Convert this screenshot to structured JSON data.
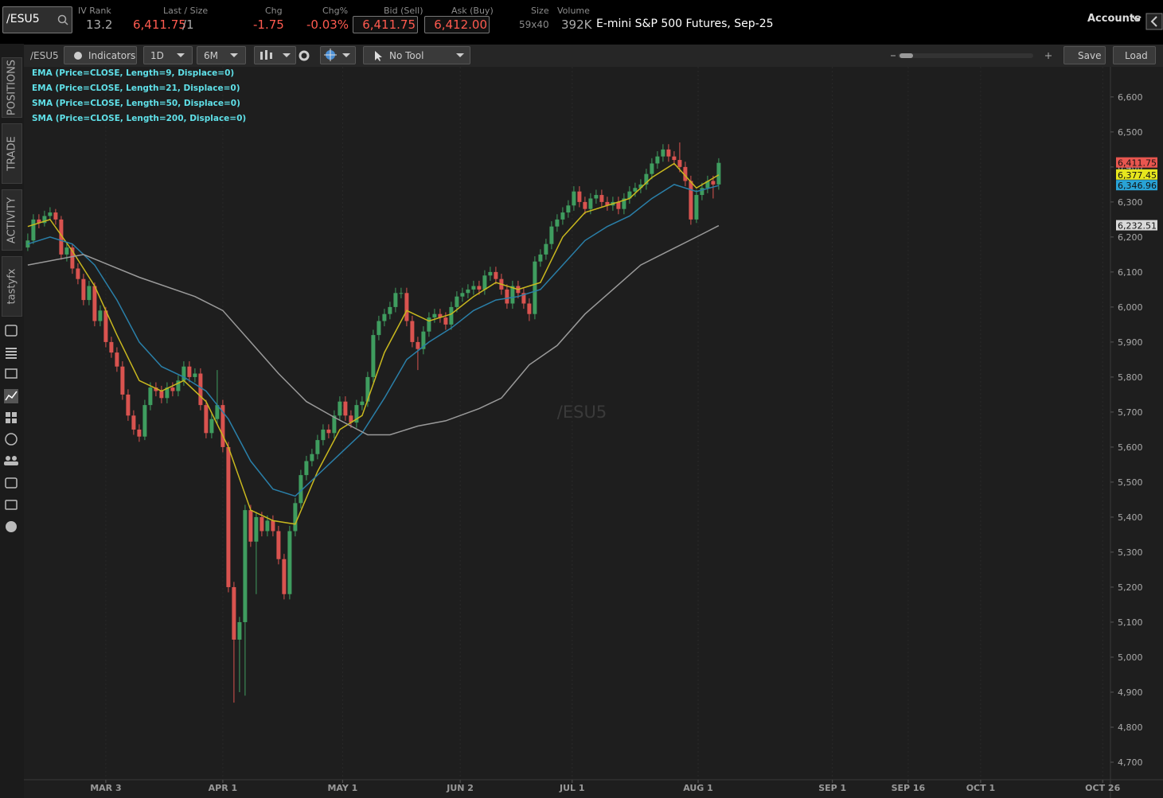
{
  "header": {
    "symbol": "/ESU5",
    "fields": [
      {
        "label": "IV Rank",
        "value": "13.2"
      },
      {
        "label": "Last / Size",
        "value": "6,411.75",
        "size": "/1"
      },
      {
        "label": "Chg",
        "value": "-1.75"
      },
      {
        "label": "Chg%",
        "value": "-0.03%"
      },
      {
        "label": "Bid (Sell)",
        "value": "6,411.75"
      },
      {
        "label": "Ask (Buy)",
        "value": "6,412.00"
      },
      {
        "label": "Size",
        "value": "59x40"
      },
      {
        "label": "Volume",
        "value": "392K"
      }
    ],
    "description": "E-mini S&P 500 Futures, Sep-25",
    "accounts": "Accounts"
  },
  "toolbar": {
    "symbol": "/ESU5",
    "indicators": "Indicators",
    "aggregation": "1D",
    "range": "6M",
    "tool": "No Tool",
    "save": "Save",
    "load": "Load"
  },
  "sidebar": {
    "tabs": [
      "POSITIONS",
      "TRADE",
      "ACTIVITY",
      "tastyfx"
    ]
  },
  "chart_data": {
    "type": "candlestick",
    "watermark": "/ESU5",
    "up_color": "#3f9d5f",
    "down_color": "#d9534f",
    "xlim": [
      -0.7,
      194.3
    ],
    "ylim": [
      4650,
      6686
    ],
    "xticks": [
      {
        "value": 14,
        "label": "MAR 3"
      },
      {
        "value": 35,
        "label": "APR 1"
      },
      {
        "value": 56.5,
        "label": "MAY 1"
      },
      {
        "value": 77.6,
        "label": "JUN 2"
      },
      {
        "value": 97.7,
        "label": "JUL 1"
      },
      {
        "value": 120.3,
        "label": "AUG 1"
      },
      {
        "value": 144.4,
        "label": "SEP 1"
      },
      {
        "value": 158,
        "label": "SEP 16"
      },
      {
        "value": 171,
        "label": "OCT 1"
      },
      {
        "value": 192.9,
        "label": "OCT 26"
      }
    ],
    "yticks": [
      {
        "value": 4700,
        "label": "4,700"
      },
      {
        "value": 4800,
        "label": "4,800"
      },
      {
        "value": 4900,
        "label": "4,900"
      },
      {
        "value": 5000,
        "label": "5,000"
      },
      {
        "value": 5100,
        "label": "5,100"
      },
      {
        "value": 5200,
        "label": "5,200"
      },
      {
        "value": 5300,
        "label": "5,300"
      },
      {
        "value": 5400,
        "label": "5,400"
      },
      {
        "value": 5500,
        "label": "5,500"
      },
      {
        "value": 5600,
        "label": "5,600"
      },
      {
        "value": 5700,
        "label": "5,700"
      },
      {
        "value": 5800,
        "label": "5,800"
      },
      {
        "value": 5900,
        "label": "5,900"
      },
      {
        "value": 6000,
        "label": "6,000"
      },
      {
        "value": 6100,
        "label": "6,100"
      },
      {
        "value": 6200,
        "label": "6,200"
      },
      {
        "value": 6300,
        "label": "6,300"
      },
      {
        "value": 6400,
        "label": "6,400"
      },
      {
        "value": 6500,
        "label": "6,500"
      },
      {
        "value": 6600,
        "label": "6,600"
      }
    ],
    "candles": [
      [
        6170,
        6210,
        6160,
        6190
      ],
      [
        6190,
        6265,
        6180,
        6250
      ],
      [
        6250,
        6265,
        6225,
        6240
      ],
      [
        6240,
        6275,
        6230,
        6260
      ],
      [
        6260,
        6285,
        6250,
        6270
      ],
      [
        6270,
        6280,
        6235,
        6250
      ],
      [
        6250,
        6260,
        6135,
        6150
      ],
      [
        6150,
        6185,
        6130,
        6170
      ],
      [
        6170,
        6180,
        6095,
        6110
      ],
      [
        6110,
        6125,
        6065,
        6080
      ],
      [
        6080,
        6095,
        6005,
        6020
      ],
      [
        6020,
        6075,
        6005,
        6060
      ],
      [
        6060,
        6070,
        5945,
        5960
      ],
      [
        5960,
        6005,
        5945,
        5990
      ],
      [
        5990,
        6000,
        5885,
        5900
      ],
      [
        5900,
        5915,
        5855,
        5870
      ],
      [
        5870,
        5885,
        5815,
        5830
      ],
      [
        5830,
        5845,
        5735,
        5750
      ],
      [
        5750,
        5765,
        5675,
        5690
      ],
      [
        5690,
        5705,
        5635,
        5650
      ],
      [
        5650,
        5665,
        5615,
        5630
      ],
      [
        5630,
        5735,
        5620,
        5720
      ],
      [
        5720,
        5785,
        5705,
        5770
      ],
      [
        5770,
        5785,
        5745,
        5760
      ],
      [
        5760,
        5775,
        5725,
        5740
      ],
      [
        5740,
        5785,
        5725,
        5770
      ],
      [
        5770,
        5785,
        5745,
        5760
      ],
      [
        5760,
        5805,
        5745,
        5790
      ],
      [
        5790,
        5845,
        5775,
        5830
      ],
      [
        5830,
        5845,
        5785,
        5800
      ],
      [
        5800,
        5825,
        5785,
        5810
      ],
      [
        5810,
        5825,
        5705,
        5720
      ],
      [
        5720,
        5735,
        5625,
        5640
      ],
      [
        5640,
        5695,
        5625,
        5680
      ],
      [
        5680,
        5820,
        5665,
        5720
      ],
      [
        5720,
        5735,
        5585,
        5600
      ],
      [
        5600,
        5615,
        5185,
        5200
      ],
      [
        5200,
        5215,
        4870,
        5050
      ],
      [
        5050,
        5115,
        4900,
        5100
      ],
      [
        5100,
        5435,
        4890,
        5420
      ],
      [
        5420,
        5435,
        5315,
        5330
      ],
      [
        5330,
        5415,
        5180,
        5400
      ],
      [
        5400,
        5415,
        5345,
        5360
      ],
      [
        5360,
        5405,
        5345,
        5390
      ],
      [
        5390,
        5405,
        5345,
        5360
      ],
      [
        5360,
        5375,
        5265,
        5280
      ],
      [
        5280,
        5295,
        5165,
        5180
      ],
      [
        5180,
        5375,
        5165,
        5360
      ],
      [
        5360,
        5455,
        5345,
        5440
      ],
      [
        5440,
        5535,
        5425,
        5520
      ],
      [
        5520,
        5575,
        5505,
        5560
      ],
      [
        5560,
        5595,
        5545,
        5580
      ],
      [
        5580,
        5635,
        5565,
        5620
      ],
      [
        5620,
        5665,
        5605,
        5650
      ],
      [
        5650,
        5665,
        5625,
        5640
      ],
      [
        5640,
        5705,
        5625,
        5690
      ],
      [
        5690,
        5745,
        5675,
        5730
      ],
      [
        5730,
        5745,
        5675,
        5690
      ],
      [
        5690,
        5705,
        5655,
        5670
      ],
      [
        5670,
        5735,
        5655,
        5720
      ],
      [
        5720,
        5745,
        5705,
        5730
      ],
      [
        5730,
        5815,
        5715,
        5800
      ],
      [
        5800,
        5935,
        5785,
        5920
      ],
      [
        5920,
        5975,
        5905,
        5960
      ],
      [
        5960,
        5995,
        5945,
        5980
      ],
      [
        5980,
        6015,
        5965,
        6000
      ],
      [
        6000,
        6055,
        5985,
        6040
      ],
      [
        6040,
        6055,
        6025,
        6040
      ],
      [
        6040,
        6055,
        5945,
        5960
      ],
      [
        5960,
        5975,
        5885,
        5900
      ],
      [
        5900,
        5915,
        5820,
        5880
      ],
      [
        5880,
        5945,
        5865,
        5930
      ],
      [
        5930,
        5985,
        5915,
        5970
      ],
      [
        5970,
        5995,
        5955,
        5980
      ],
      [
        5980,
        5995,
        5955,
        5970
      ],
      [
        5970,
        5985,
        5935,
        5950
      ],
      [
        5950,
        6015,
        5935,
        6000
      ],
      [
        6000,
        6045,
        5985,
        6030
      ],
      [
        6030,
        6055,
        6015,
        6040
      ],
      [
        6040,
        6065,
        6025,
        6050
      ],
      [
        6050,
        6075,
        6035,
        6060
      ],
      [
        6060,
        6075,
        6035,
        6050
      ],
      [
        6050,
        6105,
        6035,
        6090
      ],
      [
        6090,
        6115,
        6075,
        6100
      ],
      [
        6100,
        6115,
        6065,
        6080
      ],
      [
        6080,
        6095,
        6035,
        6050
      ],
      [
        6050,
        6065,
        5995,
        6010
      ],
      [
        6010,
        6075,
        5995,
        6060
      ],
      [
        6060,
        6075,
        6025,
        6040
      ],
      [
        6040,
        6055,
        5995,
        6010
      ],
      [
        6010,
        6025,
        5960,
        5980
      ],
      [
        5980,
        6145,
        5965,
        6130
      ],
      [
        6130,
        6165,
        6115,
        6150
      ],
      [
        6150,
        6195,
        6135,
        6180
      ],
      [
        6180,
        6245,
        6165,
        6230
      ],
      [
        6230,
        6265,
        6215,
        6250
      ],
      [
        6250,
        6285,
        6235,
        6270
      ],
      [
        6270,
        6305,
        6255,
        6290
      ],
      [
        6290,
        6345,
        6275,
        6330
      ],
      [
        6330,
        6345,
        6285,
        6300
      ],
      [
        6300,
        6315,
        6265,
        6280
      ],
      [
        6280,
        6325,
        6265,
        6310
      ],
      [
        6310,
        6335,
        6295,
        6320
      ],
      [
        6320,
        6335,
        6285,
        6300
      ],
      [
        6300,
        6315,
        6275,
        6290
      ],
      [
        6290,
        6315,
        6275,
        6300
      ],
      [
        6300,
        6315,
        6265,
        6280
      ],
      [
        6280,
        6325,
        6265,
        6310
      ],
      [
        6310,
        6345,
        6295,
        6330
      ],
      [
        6330,
        6355,
        6315,
        6340
      ],
      [
        6340,
        6365,
        6325,
        6350
      ],
      [
        6350,
        6395,
        6335,
        6380
      ],
      [
        6380,
        6425,
        6365,
        6410
      ],
      [
        6410,
        6445,
        6395,
        6430
      ],
      [
        6430,
        6465,
        6415,
        6450
      ],
      [
        6450,
        6465,
        6415,
        6430
      ],
      [
        6430,
        6445,
        6405,
        6420
      ],
      [
        6420,
        6470,
        6385,
        6400
      ],
      [
        6400,
        6415,
        6345,
        6360
      ],
      [
        6360,
        6375,
        6235,
        6250
      ],
      [
        6250,
        6335,
        6240,
        6320
      ],
      [
        6320,
        6355,
        6305,
        6340
      ],
      [
        6340,
        6375,
        6325,
        6360
      ],
      [
        6360,
        6375,
        6310,
        6350
      ],
      [
        6350,
        6425,
        6335,
        6411.75
      ]
    ],
    "series": [
      {
        "name": "EMA (Price=CLOSE, Length=9, Displace=0)",
        "color": "#c9b81e",
        "x": [
          0,
          4,
          8,
          12,
          16,
          20,
          24,
          28,
          32,
          36,
          40,
          44,
          48,
          52,
          56,
          60,
          64,
          68,
          72,
          76,
          80,
          84,
          88,
          92,
          96,
          100,
          104,
          108,
          112,
          116,
          120,
          124
        ],
        "values": [
          6230,
          6250,
          6160,
          6060,
          5920,
          5790,
          5760,
          5790,
          5730,
          5600,
          5420,
          5390,
          5380,
          5530,
          5650,
          5690,
          5870,
          5990,
          5960,
          5980,
          6030,
          6070,
          6050,
          6070,
          6200,
          6270,
          6290,
          6310,
          6370,
          6410,
          6340,
          6377.45
        ]
      },
      {
        "name": "EMA (Price=CLOSE, Length=21, Displace=0)",
        "color": "#2a7fa8",
        "x": [
          0,
          4,
          8,
          12,
          16,
          20,
          24,
          28,
          32,
          36,
          40,
          44,
          48,
          52,
          56,
          60,
          64,
          68,
          72,
          76,
          80,
          84,
          88,
          92,
          96,
          100,
          104,
          108,
          112,
          116,
          120,
          124
        ],
        "values": [
          6180,
          6200,
          6180,
          6120,
          6020,
          5900,
          5830,
          5800,
          5760,
          5680,
          5560,
          5480,
          5460,
          5520,
          5580,
          5640,
          5740,
          5850,
          5900,
          5940,
          5990,
          6020,
          6030,
          6050,
          6120,
          6190,
          6230,
          6260,
          6310,
          6350,
          6330,
          6346.96
        ]
      },
      {
        "name": "SMA (Price=CLOSE, Length=50, Displace=0)",
        "color": "#9a9a9a",
        "x": [
          0,
          10,
          20,
          30,
          35,
          40,
          45,
          50,
          55,
          61,
          65,
          70,
          75,
          81,
          85,
          90,
          95,
          100,
          105,
          110,
          115,
          120,
          124
        ],
        "values": [
          6120,
          6150,
          6085,
          6030,
          5990,
          5900,
          5810,
          5730,
          5685,
          5635,
          5635,
          5660,
          5675,
          5710,
          5740,
          5835,
          5890,
          5980,
          6050,
          6120,
          6160,
          6200,
          6232.51
        ]
      },
      {
        "name": "SMA (Price=CLOSE, Length=200, Displace=0)",
        "color": "#ffffff",
        "x": [],
        "values": []
      }
    ],
    "price_markers": [
      {
        "value": 6411.75,
        "label": "6,411.75",
        "color": "#e8564f"
      },
      {
        "value": 6377.45,
        "label": "6,377.45",
        "color": "#e6e61e"
      },
      {
        "value": 6346.96,
        "label": "6,346.96",
        "color": "#29a3d6"
      },
      {
        "value": 6232.51,
        "label": "6,232.51",
        "color": "#d9d9d9"
      }
    ]
  }
}
